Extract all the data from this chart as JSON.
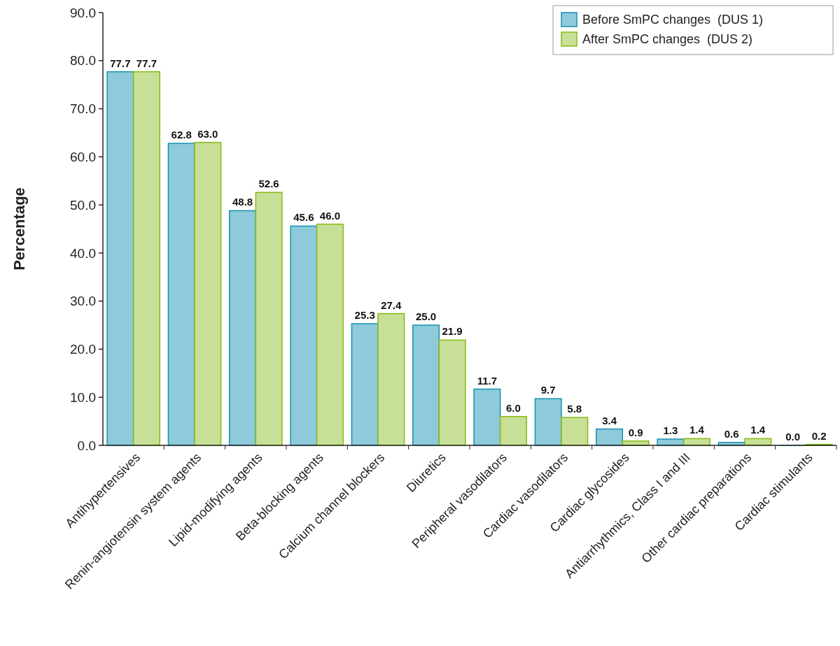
{
  "chart_data": {
    "type": "bar",
    "ylabel": "Percentage",
    "categories": [
      "Antihypertensives",
      "Renin-angiotensin system agents",
      "Lipid-modifying agents",
      "Beta-blocking agents",
      "Calcium channel blockers",
      "Diuretics",
      "Peripheral vasodilators",
      "Cardiac vasodilators",
      "Cardiac glycosides",
      "Antiarrhythmics, Class I and III",
      "Other cardiac preparations",
      "Cardiac stimulants"
    ],
    "series": [
      {
        "name": "Before SmPC changes  (DUS 1)",
        "color": "#8ecad9",
        "values": [
          77.7,
          62.8,
          48.8,
          45.6,
          25.3,
          25.0,
          11.7,
          9.7,
          3.4,
          1.3,
          0.6,
          0.0
        ],
        "value_labels": [
          "77.7",
          "62.8",
          "48.8",
          "45.6",
          "25.3",
          "25.0",
          "11.7",
          "9.7",
          "3.4",
          "1.3",
          "0.6",
          "0.0"
        ]
      },
      {
        "name": "After SmPC changes  (DUS 2)",
        "color": "#c8df98",
        "values": [
          77.7,
          63.0,
          52.6,
          46.0,
          27.4,
          21.9,
          6.0,
          5.8,
          0.9,
          1.4,
          1.4,
          0.2
        ],
        "value_labels": [
          "77.7",
          "63.0",
          "52.6",
          "46.0",
          "27.4",
          "21.9",
          "6.0",
          "5.8",
          "0.9",
          "1.4",
          "1.4",
          "0.2"
        ]
      }
    ],
    "ylim": [
      0,
      90
    ],
    "yticks": [
      {
        "value": 0,
        "label": "0.0"
      },
      {
        "value": 10,
        "label": "10.0"
      },
      {
        "value": 20,
        "label": "20.0"
      },
      {
        "value": 30,
        "label": "30.0"
      },
      {
        "value": 40,
        "label": "40.0"
      },
      {
        "value": 50,
        "label": "50.0"
      },
      {
        "value": 60,
        "label": "60.0"
      },
      {
        "value": 70,
        "label": "70.0"
      },
      {
        "value": 80,
        "label": "80.0"
      },
      {
        "value": 90,
        "label": "90.0"
      }
    ],
    "legend": "top right"
  }
}
